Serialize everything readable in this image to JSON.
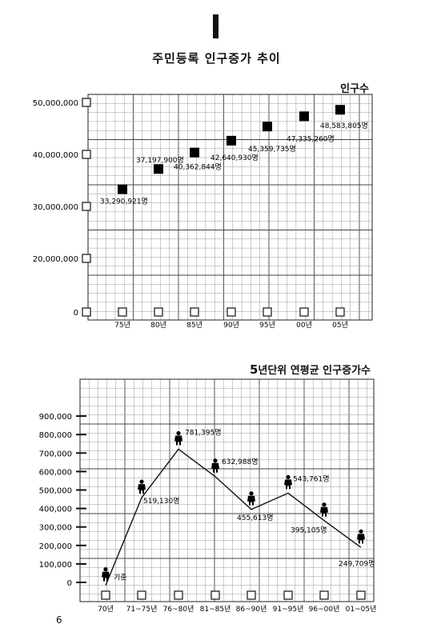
{
  "header": {
    "page_title": "주민등록 인구증가 추이"
  },
  "footer": {
    "page_number": "6"
  },
  "chart_data": [
    {
      "type": "scatter",
      "title": "인구수",
      "categories": [
        "75년",
        "80년",
        "85년",
        "90년",
        "95년",
        "00년",
        "05년"
      ],
      "values": [
        33290921,
        37197900,
        40362844,
        42640930,
        45359735,
        47335260,
        48583805
      ],
      "data_labels": [
        "33,290,921명",
        "37,197,900명",
        "40,362,844명",
        "42,640,930명",
        "45,359,735명",
        "47,335,260명",
        "48,583,805명"
      ],
      "yticks": [
        "0",
        "20,000,000",
        "30,000,000",
        "40,000,000",
        "50,000,000"
      ],
      "ylim": [
        0,
        50000000
      ],
      "grid": true,
      "marker": "filled-square"
    },
    {
      "type": "line",
      "title": "5년단위 연평균 인구증가수",
      "title_prefix": "5",
      "title_rest": "년단위 연평균 인구증가수",
      "categories": [
        "70년",
        "71~75년",
        "76~80년",
        "81~85년",
        "86~90년",
        "91~95년",
        "96~00년",
        "01~05년"
      ],
      "values": [
        45000,
        519130,
        781395,
        632988,
        455613,
        543761,
        395105,
        249709
      ],
      "data_labels": [
        "기준",
        "519,130명",
        "781,395명",
        "632,988명",
        "455,613명",
        "543,761명",
        "395,105명",
        "249,709명"
      ],
      "yticks": [
        "0",
        "100,000",
        "200,000",
        "300,000",
        "400,000",
        "500,000",
        "600,000",
        "700,000",
        "800,000",
        "900,000"
      ],
      "ylim": [
        0,
        900000
      ],
      "grid": true,
      "marker": "person-icon"
    }
  ]
}
